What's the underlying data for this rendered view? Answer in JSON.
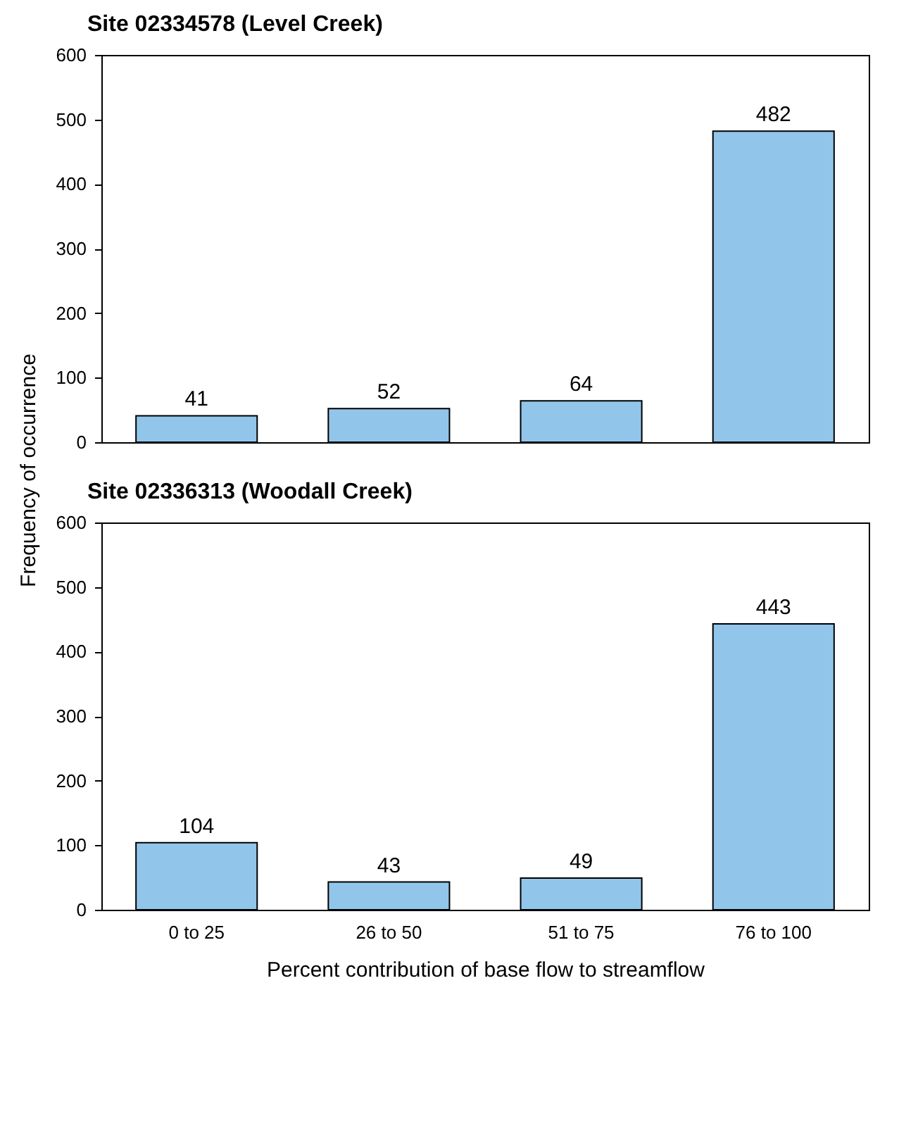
{
  "chart_data": [
    {
      "type": "bar",
      "title": "Site 02334578 (Level Creek)",
      "ylabel": "Frequency of occurrence",
      "categories": [
        null,
        null,
        null,
        null
      ],
      "values": [
        41,
        52,
        64,
        482
      ],
      "color": "#92c5ea",
      "ylim": [
        0,
        600
      ],
      "yticks": [
        0,
        100,
        200,
        300,
        400,
        500,
        600
      ],
      "data_labels": true,
      "tick_labels": "y",
      "grid": false
    },
    {
      "type": "bar",
      "title": "Site 02336313 (Woodall Creek)",
      "xlabel": "Percent contribution of base flow to streamflow",
      "categories": [
        "0 to 25",
        "26 to 50",
        "51 to 75",
        "76 to 100"
      ],
      "values": [
        104,
        43,
        49,
        443
      ],
      "color": "#92c5ea",
      "ylim": [
        0,
        600
      ],
      "yticks": [
        0,
        100,
        200,
        300,
        400,
        500,
        600
      ],
      "data_labels": true,
      "grid": false
    }
  ]
}
